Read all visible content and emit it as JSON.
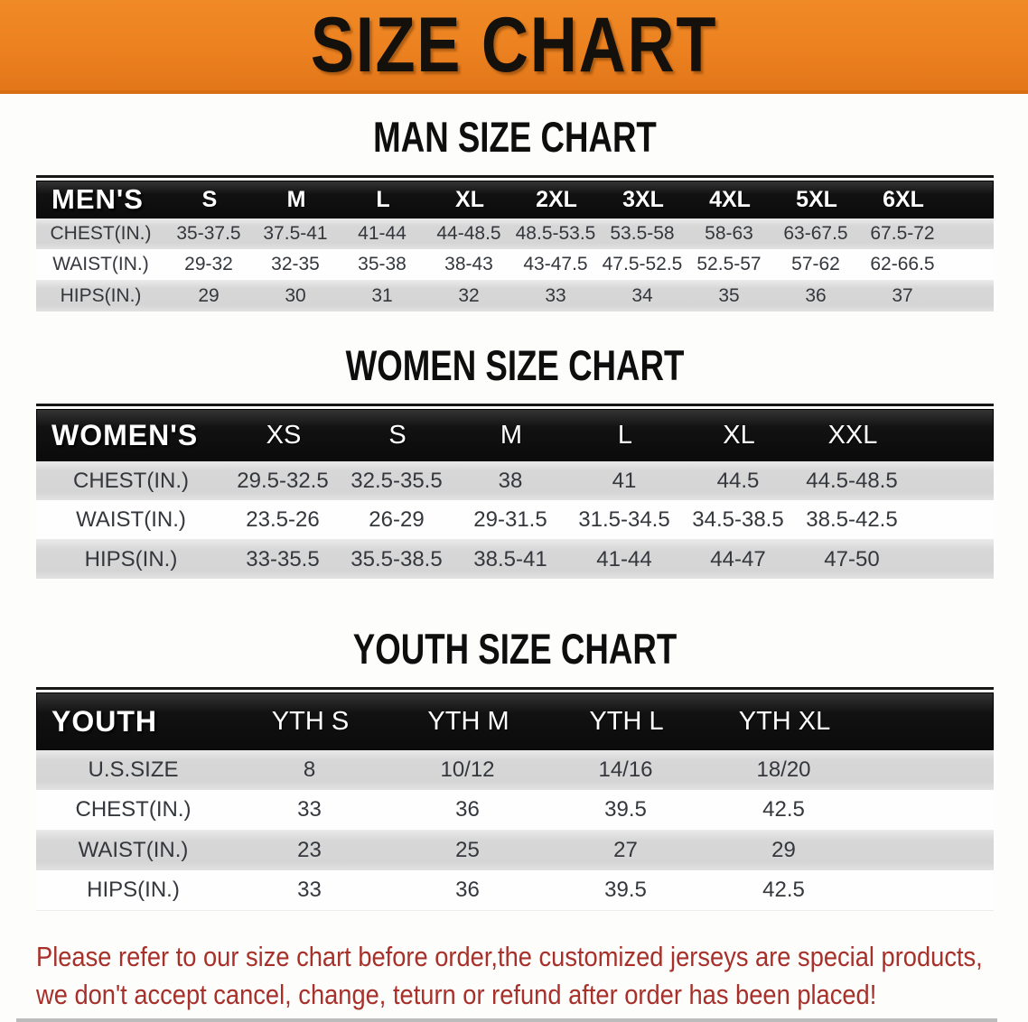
{
  "banner": {
    "title": "SIZE CHART",
    "bg_color": "#ec8120",
    "text_color": "#14100c"
  },
  "sections": [
    {
      "heading": "MAN SIZE CHART",
      "header_label": "MEN'S",
      "columns": [
        "S",
        "M",
        "L",
        "XL",
        "2XL",
        "3XL",
        "4XL",
        "5XL",
        "6XL"
      ],
      "rows": [
        {
          "label": "CHEST(IN.)",
          "values": [
            "35-37.5",
            "37.5-41",
            "41-44",
            "44-48.5",
            "48.5-53.5",
            "53.5-58",
            "58-63",
            "63-67.5",
            "67.5-72"
          ]
        },
        {
          "label": "WAIST(IN.)",
          "values": [
            "29-32",
            "32-35",
            "35-38",
            "38-43",
            "43-47.5",
            "47.5-52.5",
            "52.5-57",
            "57-62",
            "62-66.5"
          ]
        },
        {
          "label": "HIPS(IN.)",
          "values": [
            "29",
            "30",
            "31",
            "32",
            "33",
            "34",
            "35",
            "36",
            "37"
          ]
        }
      ]
    },
    {
      "heading": "WOMEN SIZE CHART",
      "header_label": "WOMEN'S",
      "columns": [
        "XS",
        "S",
        "M",
        "L",
        "XL",
        "XXL"
      ],
      "rows": [
        {
          "label": "CHEST(IN.)",
          "values": [
            "29.5-32.5",
            "32.5-35.5",
            "38",
            "41",
            "44.5",
            "44.5-48.5"
          ]
        },
        {
          "label": "WAIST(IN.)",
          "values": [
            "23.5-26",
            "26-29",
            "29-31.5",
            "31.5-34.5",
            "34.5-38.5",
            "38.5-42.5"
          ]
        },
        {
          "label": "HIPS(IN.)",
          "values": [
            "33-35.5",
            "35.5-38.5",
            "38.5-41",
            "41-44",
            "44-47",
            "47-50"
          ]
        }
      ]
    },
    {
      "heading": "YOUTH SIZE CHART",
      "header_label": "YOUTH",
      "columns": [
        "YTH S",
        "YTH M",
        "YTH L",
        "YTH XL"
      ],
      "rows": [
        {
          "label": "U.S.SIZE",
          "values": [
            "8",
            "10/12",
            "14/16",
            "18/20"
          ]
        },
        {
          "label": "CHEST(IN.)",
          "values": [
            "33",
            "36",
            "39.5",
            "42.5"
          ]
        },
        {
          "label": "WAIST(IN.)",
          "values": [
            "23",
            "25",
            "27",
            "29"
          ]
        },
        {
          "label": "HIPS(IN.)",
          "values": [
            "33",
            "36",
            "39.5",
            "42.5"
          ]
        }
      ]
    }
  ],
  "footer": {
    "line1": "Please refer to our size chart before order,the customized jerseys are special products,",
    "line2": "we don't accept cancel, change, teturn or refund after order has been placed!",
    "text_color": "#a8302a"
  },
  "style_colors": {
    "table_header_bg": "#121212",
    "stripe_gray": "#d8d8d8",
    "stripe_white": "#fefefe",
    "cell_text": "#34373c"
  }
}
